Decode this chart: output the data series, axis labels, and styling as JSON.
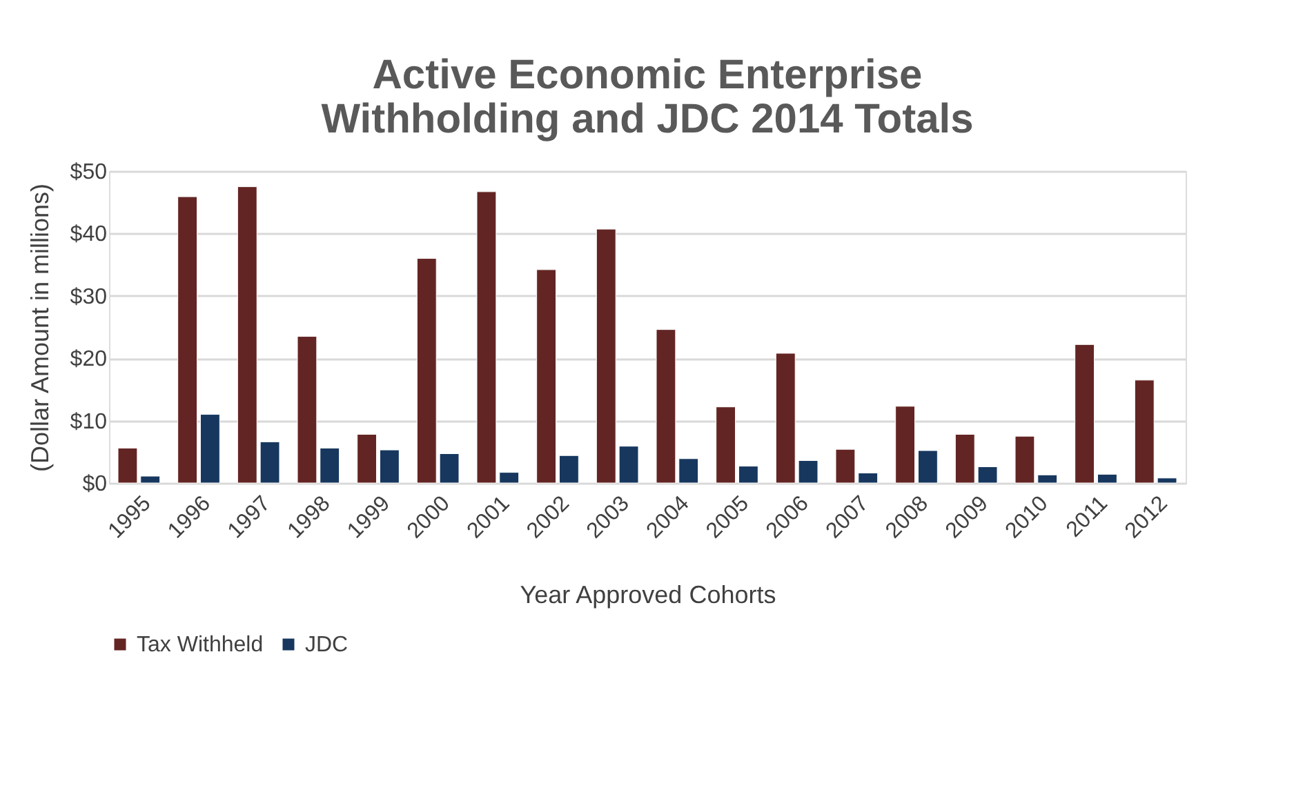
{
  "chart_data": {
    "type": "bar",
    "title": "Active Economic Enterprise\nWithholding and JDC 2014 Totals",
    "xlabel": "Year Approved Cohorts",
    "ylabel": "(Dollar Amount in millions)",
    "categories": [
      "1995",
      "1996",
      "1997",
      "1998",
      "1999",
      "2000",
      "2001",
      "2002",
      "2003",
      "2004",
      "2005",
      "2006",
      "2007",
      "2008",
      "2009",
      "2010",
      "2011",
      "2012"
    ],
    "series": [
      {
        "name": "Tax Withheld",
        "color": "#632523",
        "values": [
          5.6,
          45.9,
          47.5,
          23.5,
          7.8,
          36.0,
          46.7,
          34.2,
          40.7,
          24.6,
          12.2,
          20.8,
          5.4,
          12.3,
          7.8,
          7.5,
          22.2,
          16.5
        ]
      },
      {
        "name": "JDC",
        "color": "#17375e",
        "values": [
          1.1,
          11.0,
          6.6,
          5.6,
          5.3,
          4.7,
          1.7,
          4.4,
          5.9,
          3.9,
          2.7,
          3.6,
          1.6,
          5.2,
          2.6,
          1.3,
          1.4,
          0.8
        ]
      }
    ],
    "ylim": [
      0,
      50
    ],
    "yticks": [
      {
        "value": 0,
        "label": "$0"
      },
      {
        "value": 10,
        "label": "$10"
      },
      {
        "value": 20,
        "label": "$20"
      },
      {
        "value": 30,
        "label": "$30"
      },
      {
        "value": 40,
        "label": "$40"
      },
      {
        "value": 50,
        "label": "$50"
      }
    ],
    "grid": "y",
    "legend": "bottom"
  }
}
